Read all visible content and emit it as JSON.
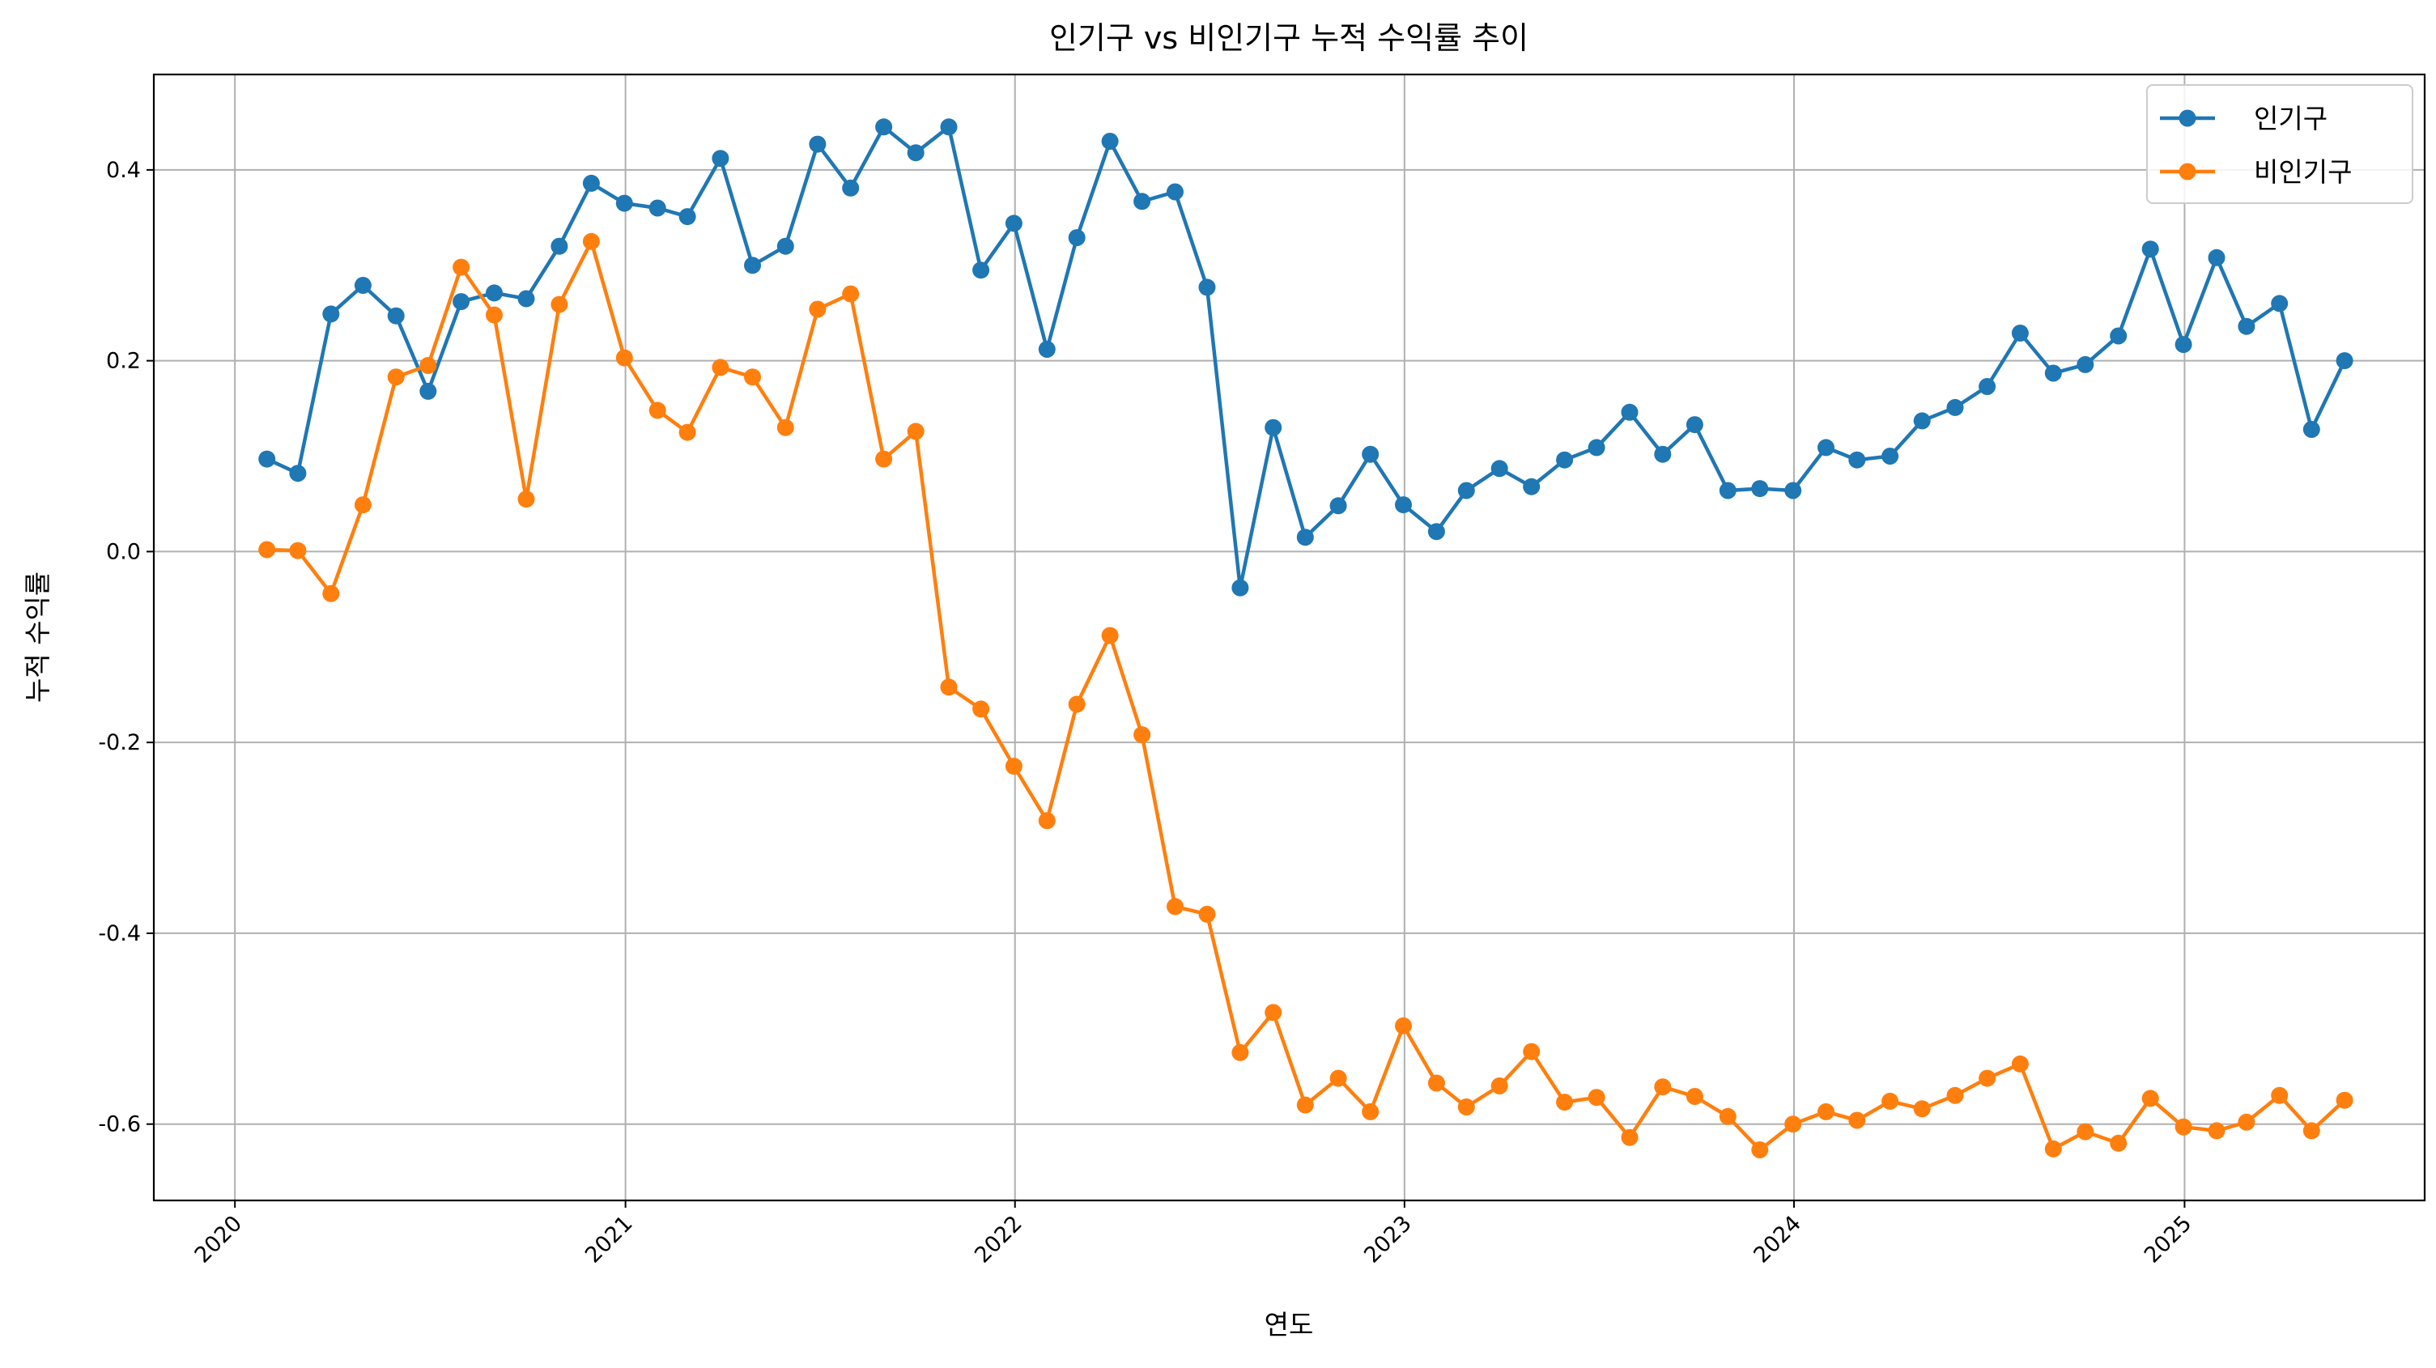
{
  "chart_data": {
    "type": "line",
    "title": "인기구 vs 비인기구 누적 수익률 추이",
    "xlabel": "연도",
    "ylabel": "누적 수익률",
    "x_ticks": [
      "2020",
      "2021",
      "2022",
      "2023",
      "2024",
      "2025"
    ],
    "y_ticks": [
      -0.6,
      -0.4,
      -0.2,
      0.0,
      0.2,
      0.4
    ],
    "y_tick_labels": [
      "-0.6",
      "-0.4",
      "-0.2",
      "0.0",
      "0.2",
      "0.4"
    ],
    "xlim": [
      "2019-10-17",
      "2025-08-14"
    ],
    "ylim": [
      -0.68,
      0.5
    ],
    "grid": true,
    "legend_position": "top-right",
    "x": [
      "2020-01-31",
      "2020-02-29",
      "2020-03-31",
      "2020-04-30",
      "2020-05-31",
      "2020-06-30",
      "2020-07-31",
      "2020-08-31",
      "2020-09-30",
      "2020-10-31",
      "2020-11-30",
      "2020-12-31",
      "2021-01-31",
      "2021-02-28",
      "2021-03-31",
      "2021-04-30",
      "2021-05-31",
      "2021-06-30",
      "2021-07-31",
      "2021-08-31",
      "2021-09-30",
      "2021-10-31",
      "2021-11-30",
      "2021-12-31",
      "2022-01-31",
      "2022-02-28",
      "2022-03-31",
      "2022-04-30",
      "2022-05-31",
      "2022-06-30",
      "2022-07-31",
      "2022-08-31",
      "2022-09-30",
      "2022-10-31",
      "2022-11-30",
      "2022-12-31",
      "2023-01-31",
      "2023-02-28",
      "2023-03-31",
      "2023-04-30",
      "2023-05-31",
      "2023-06-30",
      "2023-07-31",
      "2023-08-31",
      "2023-09-30",
      "2023-10-31",
      "2023-11-30",
      "2023-12-31",
      "2024-01-31",
      "2024-02-29",
      "2024-03-31",
      "2024-04-30",
      "2024-05-31",
      "2024-06-30",
      "2024-07-31",
      "2024-08-31",
      "2024-09-30",
      "2024-10-31",
      "2024-11-30",
      "2024-12-31",
      "2025-01-31",
      "2025-02-28",
      "2025-03-31",
      "2025-04-30",
      "2025-05-31"
    ],
    "series": [
      {
        "name": "인기구",
        "color": "#1f77b4",
        "values": [
          0.097,
          0.082,
          0.249,
          0.279,
          0.247,
          0.168,
          0.262,
          0.271,
          0.265,
          0.32,
          0.386,
          0.365,
          0.36,
          0.351,
          0.412,
          0.3,
          0.32,
          0.427,
          0.381,
          0.445,
          0.418,
          0.445,
          0.295,
          0.344,
          0.212,
          0.329,
          0.43,
          0.367,
          0.377,
          0.277,
          -0.038,
          0.13,
          0.015,
          0.048,
          0.102,
          0.049,
          0.021,
          0.064,
          0.087,
          0.068,
          0.096,
          0.109,
          0.146,
          0.102,
          0.133,
          0.064,
          0.066,
          0.064,
          0.109,
          0.096,
          0.1,
          0.137,
          0.151,
          0.173,
          0.229,
          0.187,
          0.196,
          0.226,
          0.317,
          0.217,
          0.308,
          0.236,
          0.26,
          0.128,
          0.2
        ]
      },
      {
        "name": "비인기구",
        "color": "#ff7f0e",
        "values": [
          0.002,
          0.001,
          -0.044,
          0.049,
          0.183,
          0.195,
          0.298,
          0.248,
          0.055,
          0.259,
          0.325,
          0.203,
          0.148,
          0.125,
          0.193,
          0.183,
          0.13,
          0.254,
          0.27,
          0.097,
          0.126,
          -0.142,
          -0.165,
          -0.225,
          -0.282,
          -0.16,
          -0.088,
          -0.192,
          -0.372,
          -0.38,
          -0.525,
          -0.483,
          -0.58,
          -0.552,
          -0.587,
          -0.497,
          -0.557,
          -0.582,
          -0.56,
          -0.524,
          -0.577,
          -0.572,
          -0.614,
          -0.561,
          -0.571,
          -0.592,
          -0.627,
          -0.6,
          -0.587,
          -0.596,
          -0.576,
          -0.584,
          -0.57,
          -0.552,
          -0.537,
          -0.626,
          -0.608,
          -0.62,
          -0.573,
          -0.603,
          -0.607,
          -0.598,
          -0.57,
          -0.607,
          -0.575
        ]
      }
    ]
  }
}
